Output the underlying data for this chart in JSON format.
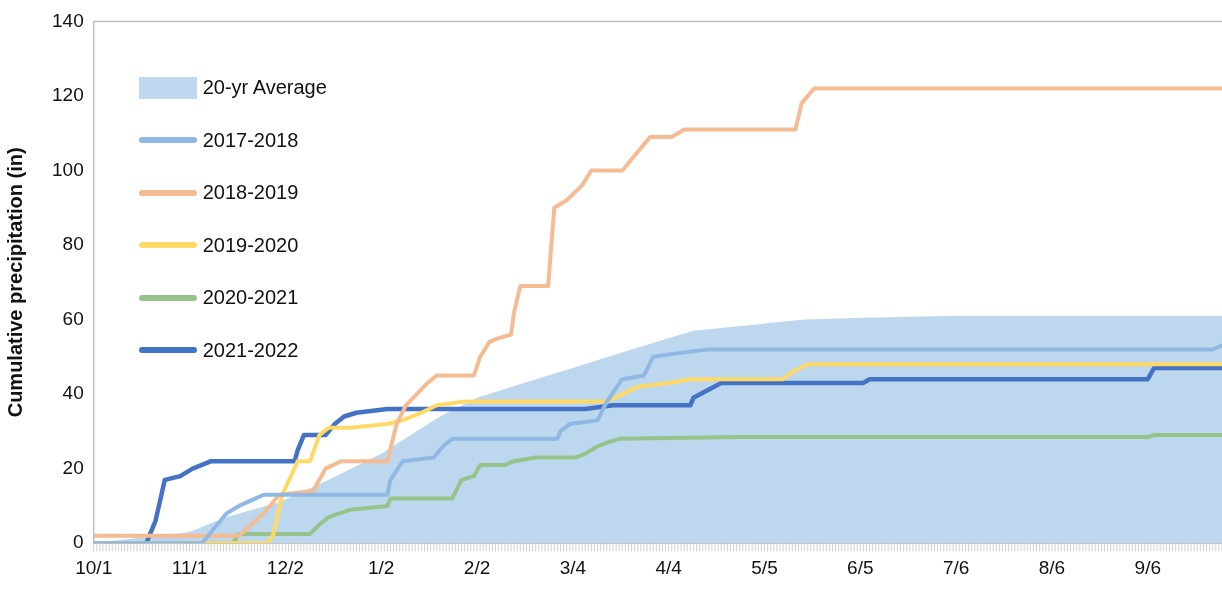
{
  "chart_data": {
    "type": "line",
    "ylabel": "Cumulative precipitation (in)",
    "xlim": [
      "2019-10-01",
      "2020-09-30"
    ],
    "xticks": [
      {
        "value": "2019-10-01",
        "label": "10/1"
      },
      {
        "value": "2019-11-01",
        "label": "11/1"
      },
      {
        "value": "2019-12-02",
        "label": "12/2"
      },
      {
        "value": "2020-01-02",
        "label": "1/2"
      },
      {
        "value": "2020-02-02",
        "label": "2/2"
      },
      {
        "value": "2020-03-04",
        "label": "3/4"
      },
      {
        "value": "2020-04-04",
        "label": "4/4"
      },
      {
        "value": "2020-05-05",
        "label": "5/5"
      },
      {
        "value": "2020-06-05",
        "label": "6/5"
      },
      {
        "value": "2020-07-06",
        "label": "7/6"
      },
      {
        "value": "2020-08-06",
        "label": "8/6"
      },
      {
        "value": "2020-09-06",
        "label": "9/6"
      }
    ],
    "ylim": [
      0,
      140
    ],
    "yticks": [
      0,
      20,
      40,
      60,
      80,
      100,
      120,
      140
    ],
    "grid": false,
    "legend": "top left",
    "series": [
      {
        "name": "20-yr Average",
        "type": "area",
        "color": "#bdd7ee",
        "x": [
          "2019-10-01",
          "2019-10-11",
          "2019-11-01",
          "2019-11-13",
          "2019-11-30",
          "2019-12-16",
          "2020-01-02",
          "2020-01-21",
          "2020-02-02",
          "2020-02-25",
          "2020-03-04",
          "2020-03-23",
          "2020-04-04",
          "2020-04-12",
          "2020-05-18",
          "2020-06-06",
          "2020-07-06",
          "2020-09-30"
        ],
        "values": [
          0,
          1,
          3,
          7,
          11,
          17,
          24,
          34,
          39,
          45,
          47,
          52,
          55,
          57,
          60,
          60.5,
          61,
          61
        ]
      },
      {
        "name": "2017-2018",
        "color": "#8fb9e3",
        "x": [
          "2019-10-01",
          "2019-11-05",
          "2019-11-07",
          "2019-11-10",
          "2019-11-13",
          "2019-11-17",
          "2019-11-25",
          "2020-01-04",
          "2020-01-05",
          "2020-01-09",
          "2020-01-19",
          "2020-01-22",
          "2020-01-25",
          "2020-02-28",
          "2020-02-29",
          "2020-03-03",
          "2020-03-12",
          "2020-03-15",
          "2020-03-20",
          "2020-03-27",
          "2020-03-30",
          "2020-04-07",
          "2020-04-17",
          "2020-09-27",
          "2020-09-30"
        ],
        "values": [
          0,
          0,
          2,
          5,
          8,
          10,
          13,
          13,
          17,
          22,
          23,
          26,
          28,
          28,
          30,
          32,
          33,
          38,
          44,
          45,
          50,
          51,
          52,
          52,
          53
        ]
      },
      {
        "name": "2018-2019",
        "color": "#f5bb93",
        "x": [
          "2019-10-01",
          "2019-11-17",
          "2019-11-21",
          "2019-11-25",
          "2019-11-30",
          "2019-12-11",
          "2019-12-15",
          "2019-12-20",
          "2020-01-04",
          "2020-01-07",
          "2020-01-10",
          "2020-01-17",
          "2020-01-20",
          "2020-02-01",
          "2020-02-03",
          "2020-02-06",
          "2020-02-09",
          "2020-02-13",
          "2020-02-14",
          "2020-02-16",
          "2020-02-25",
          "2020-02-27",
          "2020-03-02",
          "2020-03-07",
          "2020-03-10",
          "2020-03-20",
          "2020-03-23",
          "2020-03-27",
          "2020-03-29",
          "2020-04-05",
          "2020-04-09",
          "2020-04-17",
          "2020-05-15",
          "2020-05-17",
          "2020-05-21",
          "2020-09-30"
        ],
        "values": [
          2,
          2,
          5,
          8,
          13,
          14,
          20,
          22,
          22,
          32,
          37,
          43,
          45,
          45,
          50,
          54,
          55,
          56,
          62,
          69,
          69,
          90,
          92,
          96,
          100,
          100,
          103,
          107,
          109,
          109,
          111,
          111,
          111,
          118,
          122,
          122
        ]
      },
      {
        "name": "2019-2020",
        "color": "#ffd966",
        "x": [
          "2019-10-01",
          "2019-11-26",
          "2019-11-28",
          "2019-12-01",
          "2019-12-06",
          "2019-12-10",
          "2019-12-13",
          "2019-12-16",
          "2019-12-23",
          "2020-01-04",
          "2020-01-09",
          "2020-01-15",
          "2020-01-20",
          "2020-01-29",
          "2020-03-15",
          "2020-03-20",
          "2020-03-25",
          "2020-04-04",
          "2020-04-11",
          "2020-05-11",
          "2020-05-14",
          "2020-05-19",
          "2020-09-30"
        ],
        "values": [
          0,
          0,
          2,
          13,
          22,
          22,
          29,
          31,
          31,
          32,
          33,
          35,
          37,
          38,
          38,
          40,
          42,
          43,
          44,
          44,
          46,
          48,
          48
        ]
      },
      {
        "name": "2020-2021",
        "color": "#97c38a",
        "x": [
          "2019-10-01",
          "2019-11-15",
          "2019-11-17",
          "2019-12-10",
          "2019-12-13",
          "2019-12-16",
          "2019-12-23",
          "2020-01-04",
          "2020-01-05",
          "2020-01-25",
          "2020-01-28",
          "2020-02-01",
          "2020-02-03",
          "2020-02-11",
          "2020-02-14",
          "2020-02-21",
          "2020-03-05",
          "2020-03-08",
          "2020-03-12",
          "2020-03-15",
          "2020-03-19",
          "2020-04-26",
          "2020-09-06",
          "2020-09-08",
          "2020-09-30"
        ],
        "values": [
          0,
          0,
          2.5,
          2.5,
          5,
          7,
          9,
          10,
          12,
          12,
          17,
          18,
          21,
          21,
          22,
          23,
          23,
          24,
          26,
          27,
          28,
          28.5,
          28.5,
          29,
          29
        ]
      },
      {
        "name": "2021-2022",
        "color": "#4472c4",
        "x": [
          "2019-10-01",
          "2019-10-18",
          "2019-10-21",
          "2019-10-24",
          "2019-10-29",
          "2019-11-02",
          "2019-11-08",
          "2019-12-05",
          "2019-12-06",
          "2019-12-08",
          "2019-12-15",
          "2019-12-18",
          "2019-12-21",
          "2019-12-25",
          "2020-01-04",
          "2020-03-08",
          "2020-03-17",
          "2020-04-11",
          "2020-04-12",
          "2020-04-21",
          "2020-06-06",
          "2020-06-08",
          "2020-09-06",
          "2020-09-08",
          "2020-09-30"
        ],
        "values": [
          0,
          0,
          6,
          17,
          18,
          20,
          22,
          22,
          25,
          29,
          29,
          32,
          34,
          35,
          36,
          36,
          37,
          37,
          39,
          43,
          43,
          44,
          44,
          47,
          47
        ]
      }
    ]
  }
}
